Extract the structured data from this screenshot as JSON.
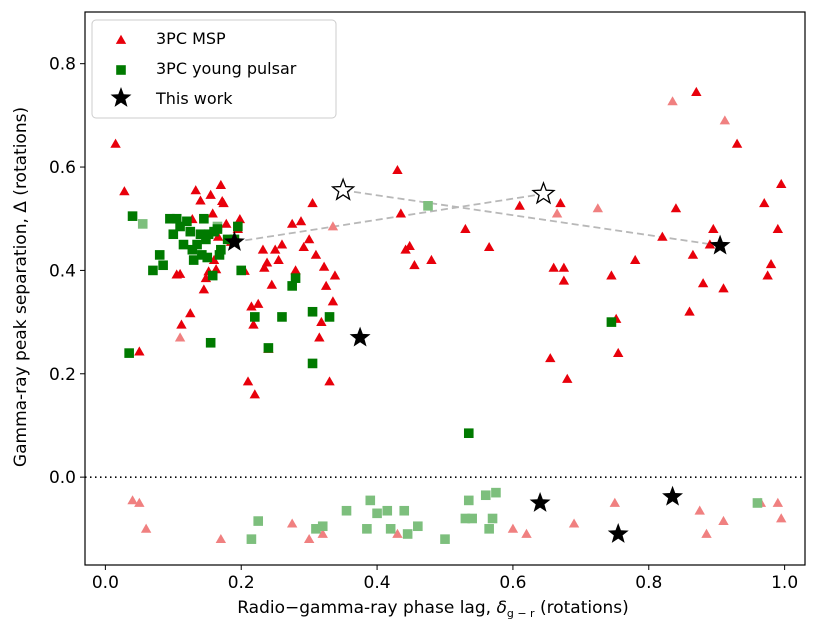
{
  "chart_data": {
    "type": "scatter",
    "title": "",
    "xlabel": "Radio−gamma-ray phase lag, ",
    "xlabel_symbol": "δ",
    "xlabel_subscript": "g − r",
    "xlabel_suffix": " (rotations)",
    "ylabel": "Gamma-ray peak separation, Δ (rotations)",
    "xlim": [
      -0.03,
      1.03
    ],
    "ylim": [
      -0.17,
      0.9
    ],
    "xticks": [
      "0.0",
      "0.2",
      "0.4",
      "0.6",
      "0.8",
      "1.0"
    ],
    "xtick_values": [
      0.0,
      0.2,
      0.4,
      0.6,
      0.8,
      1.0
    ],
    "yticks": [
      "0.0",
      "0.2",
      "0.4",
      "0.6",
      "0.8"
    ],
    "ytick_values": [
      0.0,
      0.2,
      0.4,
      0.6,
      0.8
    ],
    "zero_line": 0.0,
    "legend_position": "top-left",
    "legend": [
      "3PC MSP",
      "3PC young pulsar",
      "This work"
    ],
    "colors": {
      "msp": "#e8000b",
      "msp_faded": "#f08080",
      "young": "#007a00",
      "young_faded": "#7dbf7d",
      "this_work": "#000000",
      "dash": "#b8b8b8"
    },
    "series": [
      {
        "name": "3PC MSP",
        "marker": "triangle",
        "points": [
          [
            0.015,
            0.645
          ],
          [
            0.028,
            0.553
          ],
          [
            0.05,
            0.243
          ],
          [
            0.105,
            0.392
          ],
          [
            0.11,
            0.393
          ],
          [
            0.112,
            0.295
          ],
          [
            0.125,
            0.317
          ],
          [
            0.128,
            0.499
          ],
          [
            0.133,
            0.555
          ],
          [
            0.14,
            0.535
          ],
          [
            0.145,
            0.363
          ],
          [
            0.148,
            0.385
          ],
          [
            0.152,
            0.398
          ],
          [
            0.155,
            0.546
          ],
          [
            0.158,
            0.51
          ],
          [
            0.16,
            0.42
          ],
          [
            0.163,
            0.402
          ],
          [
            0.166,
            0.465
          ],
          [
            0.17,
            0.565
          ],
          [
            0.172,
            0.534
          ],
          [
            0.174,
            0.53
          ],
          [
            0.178,
            0.49
          ],
          [
            0.185,
            0.455
          ],
          [
            0.195,
            0.48
          ],
          [
            0.198,
            0.499
          ],
          [
            0.205,
            0.399
          ],
          [
            0.21,
            0.185
          ],
          [
            0.215,
            0.33
          ],
          [
            0.218,
            0.295
          ],
          [
            0.22,
            0.16
          ],
          [
            0.225,
            0.335
          ],
          [
            0.232,
            0.44
          ],
          [
            0.234,
            0.405
          ],
          [
            0.238,
            0.415
          ],
          [
            0.24,
            0.248
          ],
          [
            0.245,
            0.372
          ],
          [
            0.25,
            0.44
          ],
          [
            0.255,
            0.42
          ],
          [
            0.26,
            0.45
          ],
          [
            0.275,
            0.49
          ],
          [
            0.28,
            0.4
          ],
          [
            0.288,
            0.495
          ],
          [
            0.292,
            0.445
          ],
          [
            0.3,
            0.46
          ],
          [
            0.305,
            0.53
          ],
          [
            0.31,
            0.43
          ],
          [
            0.315,
            0.27
          ],
          [
            0.318,
            0.3
          ],
          [
            0.322,
            0.407
          ],
          [
            0.325,
            0.37
          ],
          [
            0.33,
            0.185
          ],
          [
            0.335,
            0.34
          ],
          [
            0.338,
            0.39
          ],
          [
            0.43,
            0.594
          ],
          [
            0.435,
            0.51
          ],
          [
            0.442,
            0.44
          ],
          [
            0.448,
            0.447
          ],
          [
            0.455,
            0.41
          ],
          [
            0.48,
            0.42
          ],
          [
            0.53,
            0.48
          ],
          [
            0.565,
            0.445
          ],
          [
            0.61,
            0.525
          ],
          [
            0.655,
            0.23
          ],
          [
            0.66,
            0.405
          ],
          [
            0.67,
            0.53
          ],
          [
            0.675,
            0.38
          ],
          [
            0.675,
            0.405
          ],
          [
            0.68,
            0.19
          ],
          [
            0.745,
            0.39
          ],
          [
            0.752,
            0.306
          ],
          [
            0.755,
            0.24
          ],
          [
            0.78,
            0.42
          ],
          [
            0.82,
            0.465
          ],
          [
            0.84,
            0.52
          ],
          [
            0.86,
            0.32
          ],
          [
            0.865,
            0.43
          ],
          [
            0.87,
            0.745
          ],
          [
            0.88,
            0.375
          ],
          [
            0.89,
            0.45
          ],
          [
            0.895,
            0.48
          ],
          [
            0.91,
            0.365
          ],
          [
            0.93,
            0.645
          ],
          [
            0.97,
            0.53
          ],
          [
            0.975,
            0.39
          ],
          [
            0.98,
            0.412
          ],
          [
            0.99,
            0.48
          ],
          [
            0.995,
            0.567
          ]
        ]
      },
      {
        "name": "3PC MSP (faded)",
        "marker": "triangle",
        "points": [
          [
            0.11,
            0.27
          ],
          [
            0.335,
            0.485
          ],
          [
            0.665,
            0.51
          ],
          [
            0.725,
            0.52
          ],
          [
            0.835,
            0.727
          ],
          [
            0.912,
            0.69
          ],
          [
            0.04,
            -0.045
          ],
          [
            0.05,
            -0.05
          ],
          [
            0.06,
            -0.1
          ],
          [
            0.17,
            -0.12
          ],
          [
            0.275,
            -0.09
          ],
          [
            0.3,
            -0.12
          ],
          [
            0.32,
            -0.11
          ],
          [
            0.43,
            -0.11
          ],
          [
            0.6,
            -0.1
          ],
          [
            0.62,
            -0.11
          ],
          [
            0.69,
            -0.09
          ],
          [
            0.75,
            -0.05
          ],
          [
            0.875,
            -0.065
          ],
          [
            0.885,
            -0.11
          ],
          [
            0.91,
            -0.085
          ],
          [
            0.965,
            -0.05
          ],
          [
            0.99,
            -0.05
          ],
          [
            0.995,
            -0.08
          ]
        ]
      },
      {
        "name": "3PC young pulsar",
        "marker": "square",
        "points": [
          [
            0.035,
            0.24
          ],
          [
            0.04,
            0.505
          ],
          [
            0.07,
            0.4
          ],
          [
            0.08,
            0.43
          ],
          [
            0.085,
            0.41
          ],
          [
            0.095,
            0.5
          ],
          [
            0.1,
            0.47
          ],
          [
            0.105,
            0.5
          ],
          [
            0.11,
            0.485
          ],
          [
            0.115,
            0.45
          ],
          [
            0.12,
            0.495
          ],
          [
            0.125,
            0.475
          ],
          [
            0.128,
            0.44
          ],
          [
            0.13,
            0.42
          ],
          [
            0.135,
            0.45
          ],
          [
            0.14,
            0.47
          ],
          [
            0.142,
            0.43
          ],
          [
            0.145,
            0.5
          ],
          [
            0.148,
            0.46
          ],
          [
            0.15,
            0.425
          ],
          [
            0.152,
            0.47
          ],
          [
            0.158,
            0.39
          ],
          [
            0.16,
            0.475
          ],
          [
            0.165,
            0.48
          ],
          [
            0.168,
            0.43
          ],
          [
            0.17,
            0.44
          ],
          [
            0.18,
            0.46
          ],
          [
            0.19,
            0.46
          ],
          [
            0.195,
            0.485
          ],
          [
            0.2,
            0.4
          ],
          [
            0.155,
            0.26
          ],
          [
            0.22,
            0.31
          ],
          [
            0.24,
            0.25
          ],
          [
            0.26,
            0.31
          ],
          [
            0.275,
            0.37
          ],
          [
            0.28,
            0.385
          ],
          [
            0.305,
            0.32
          ],
          [
            0.305,
            0.22
          ],
          [
            0.33,
            0.31
          ],
          [
            0.535,
            0.085
          ],
          [
            0.745,
            0.3
          ]
        ]
      },
      {
        "name": "3PC young pulsar (faded)",
        "marker": "square",
        "points": [
          [
            0.055,
            0.49
          ],
          [
            0.165,
            0.485
          ],
          [
            0.475,
            0.525
          ],
          [
            0.215,
            -0.12
          ],
          [
            0.225,
            -0.085
          ],
          [
            0.31,
            -0.1
          ],
          [
            0.32,
            -0.095
          ],
          [
            0.355,
            -0.065
          ],
          [
            0.385,
            -0.1
          ],
          [
            0.39,
            -0.045
          ],
          [
            0.4,
            -0.07
          ],
          [
            0.415,
            -0.065
          ],
          [
            0.42,
            -0.1
          ],
          [
            0.44,
            -0.065
          ],
          [
            0.445,
            -0.11
          ],
          [
            0.46,
            -0.095
          ],
          [
            0.5,
            -0.12
          ],
          [
            0.53,
            -0.08
          ],
          [
            0.535,
            -0.045
          ],
          [
            0.54,
            -0.08
          ],
          [
            0.56,
            -0.035
          ],
          [
            0.565,
            -0.1
          ],
          [
            0.57,
            -0.08
          ],
          [
            0.575,
            -0.03
          ],
          [
            0.96,
            -0.05
          ]
        ]
      },
      {
        "name": "This work",
        "marker": "star",
        "points": [
          [
            0.19,
            0.455
          ],
          [
            0.375,
            0.27
          ],
          [
            0.905,
            0.448
          ],
          [
            0.64,
            -0.05
          ],
          [
            0.755,
            -0.11
          ],
          [
            0.835,
            -0.038
          ]
        ]
      },
      {
        "name": "This work (alternative)",
        "marker": "star-open",
        "points": [
          [
            0.35,
            0.555
          ],
          [
            0.645,
            0.548
          ]
        ]
      }
    ],
    "connections": [
      [
        [
          0.19,
          0.455
        ],
        [
          0.645,
          0.548
        ]
      ],
      [
        [
          0.35,
          0.555
        ],
        [
          0.905,
          0.448
        ]
      ]
    ]
  }
}
